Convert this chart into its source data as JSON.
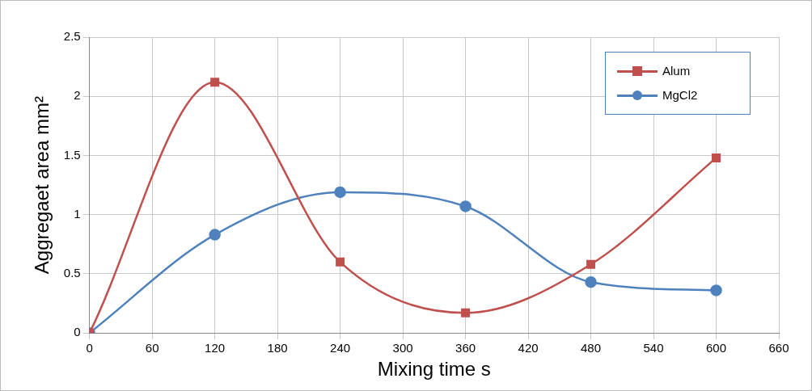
{
  "chart_data": {
    "type": "line",
    "xlabel": "Mixing time s",
    "ylabel": "Aggregaet area mm²",
    "x": [
      0,
      120,
      240,
      360,
      480,
      600
    ],
    "series": [
      {
        "name": "Alum",
        "color": "#c0504d",
        "marker": "square",
        "values": [
          0,
          2.12,
          0.6,
          0.17,
          0.58,
          1.48
        ]
      },
      {
        "name": "MgCl2",
        "color": "#4f81bd",
        "marker": "circle",
        "values": [
          0,
          0.83,
          1.19,
          1.07,
          0.43,
          0.36
        ]
      }
    ],
    "xlim": [
      0,
      660
    ],
    "xticks": [
      0,
      60,
      120,
      180,
      240,
      300,
      360,
      420,
      480,
      540,
      600,
      660
    ],
    "ylim": [
      0,
      2.5
    ],
    "yticks": [
      0,
      0.5,
      1,
      1.5,
      2,
      2.5
    ],
    "grid": true,
    "legend": "top right"
  }
}
